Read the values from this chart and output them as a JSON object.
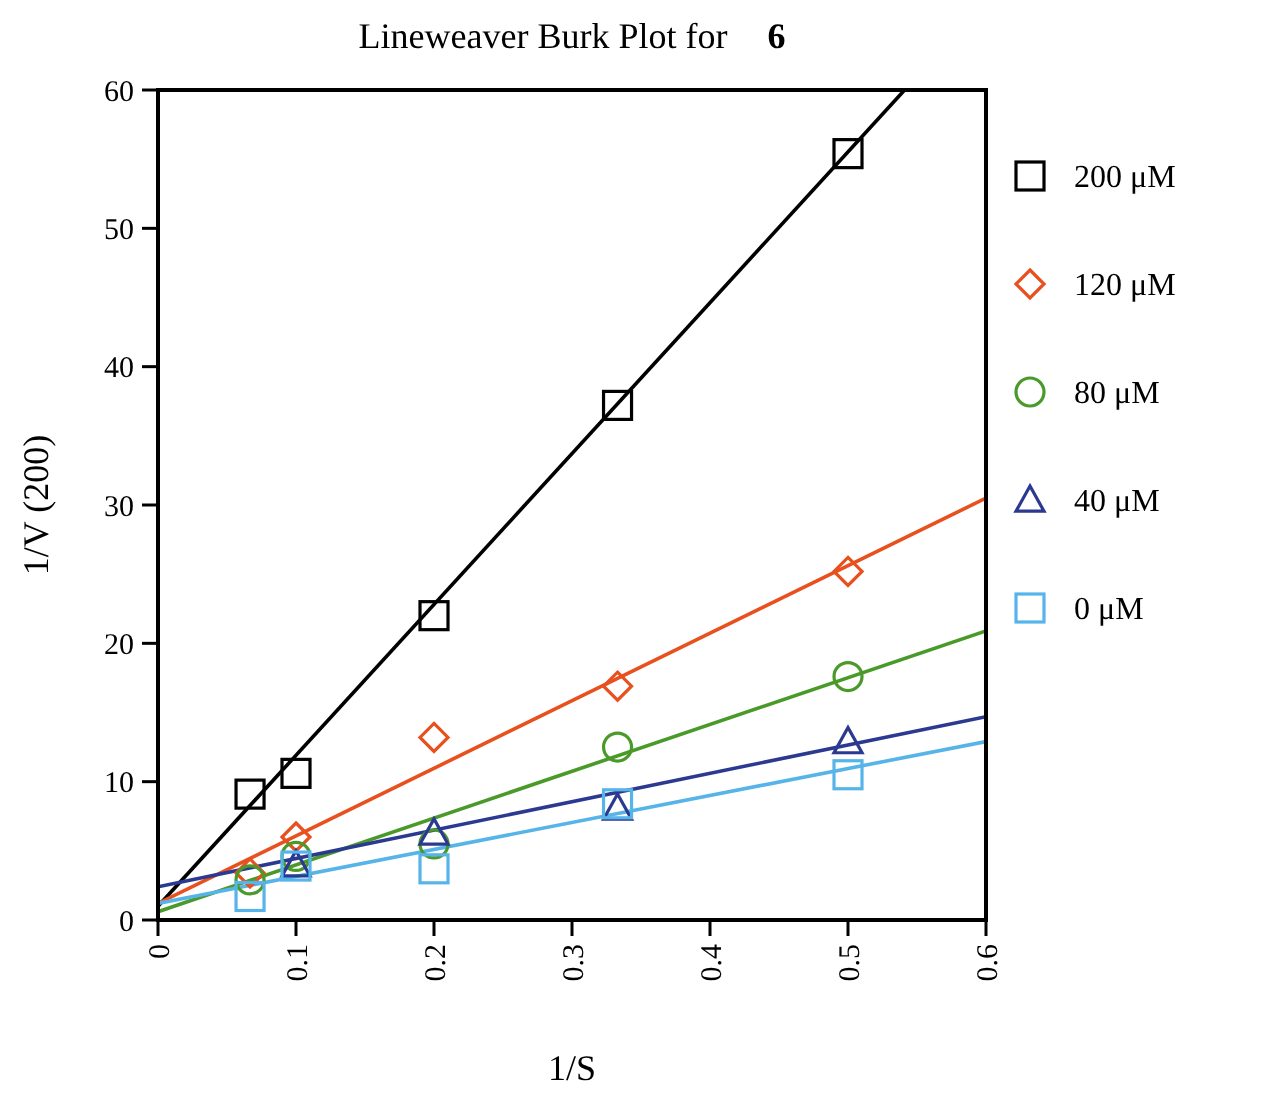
{
  "chart_data": {
    "type": "scatter",
    "title": "Lineweaver Burk Plot for 6",
    "xlabel": "1/S",
    "ylabel": "1/V (200)",
    "xlim": [
      0,
      0.6
    ],
    "xticks": [
      0,
      0.1,
      0.2,
      0.3,
      0.4,
      0.5,
      0.6
    ],
    "ylim": [
      0,
      60
    ],
    "yticks": [
      0,
      10,
      20,
      30,
      40,
      50,
      60
    ],
    "grid": false,
    "legend": "right",
    "series": [
      {
        "type": "line",
        "color": "#000000",
        "x": [
          0,
          0.541
        ],
        "values": [
          1.0,
          60
        ]
      },
      {
        "type": "line",
        "color": "#e8501e",
        "x": [
          0,
          0.6
        ],
        "values": [
          1.2,
          30.5
        ]
      },
      {
        "type": "line",
        "color": "#4a9a2a",
        "x": [
          0,
          0.6
        ],
        "values": [
          0.6,
          20.9
        ]
      },
      {
        "type": "line",
        "color": "#2b3a90",
        "x": [
          0,
          0.6
        ],
        "values": [
          2.4,
          14.7
        ]
      },
      {
        "type": "line",
        "color": "#56b4e9",
        "x": [
          0,
          0.6
        ],
        "values": [
          1.2,
          12.9
        ]
      },
      {
        "name": "200 μM",
        "color": "#000000",
        "marker": "square",
        "x": [
          0.0667,
          0.1,
          0.2,
          0.333,
          0.5
        ],
        "values": [
          9.1,
          10.6,
          22,
          37.2,
          55.4
        ]
      },
      {
        "name": "120 μM",
        "color": "#e8501e",
        "marker": "diamond",
        "x": [
          0.0667,
          0.1,
          0.2,
          0.333,
          0.5
        ],
        "values": [
          3.4,
          6.0,
          13.2,
          16.9,
          25.2
        ]
      },
      {
        "name": "80 μM",
        "color": "#4a9a2a",
        "marker": "circle",
        "x": [
          0.0667,
          0.1,
          0.2,
          0.333,
          0.5
        ],
        "values": [
          2.9,
          4.6,
          5.5,
          12.5,
          17.6
        ]
      },
      {
        "name": "40 μM",
        "color": "#2b3a90",
        "marker": "triangle",
        "x": [
          0.1,
          0.2,
          0.333,
          0.5
        ],
        "values": [
          4.0,
          6.3,
          8.1,
          12.9
        ]
      },
      {
        "name": "0 μM",
        "color": "#56b4e9",
        "marker": "square",
        "x": [
          0.0667,
          0.1,
          0.2,
          0.333,
          0.5
        ],
        "values": [
          1.7,
          3.9,
          3.7,
          8.4,
          10.5
        ]
      }
    ]
  }
}
